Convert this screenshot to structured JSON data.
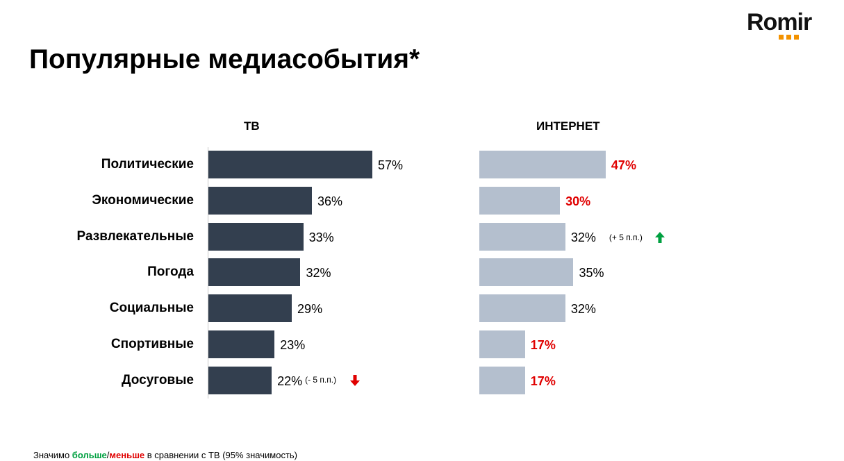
{
  "logo": {
    "text": "Romir",
    "dot_color": "#f39200"
  },
  "title": "Популярные медиасобытия*",
  "colors": {
    "tv_bar": "#333f4f",
    "internet_bar": "#b4bfce",
    "higher": "#00a040",
    "lower": "#e00000"
  },
  "chart_data": [
    {
      "type": "bar",
      "orientation": "horizontal",
      "title": "ТВ",
      "categories": [
        "Политические",
        "Экономические",
        "Развлекательные",
        "Погода",
        "Социальные",
        "Спортивные",
        "Досуговые"
      ],
      "values": [
        57,
        36,
        33,
        32,
        29,
        23,
        22
      ],
      "value_labels": [
        "57%",
        "36%",
        "33%",
        "32%",
        "29%",
        "23%",
        "22%"
      ],
      "annotations": [
        {
          "category": "Досуговые",
          "text": "(- 5 п.п.)",
          "arrow": "down",
          "color": "#e00000"
        }
      ],
      "unit": "%"
    },
    {
      "type": "bar",
      "orientation": "horizontal",
      "title": "ИНТЕРНЕТ",
      "categories": [
        "Политические",
        "Экономические",
        "Развлекательные",
        "Погода",
        "Социальные",
        "Спортивные",
        "Досуговые"
      ],
      "values": [
        47,
        30,
        32,
        35,
        32,
        17,
        17
      ],
      "value_labels": [
        "47%",
        "30%",
        "32%",
        "35%",
        "32%",
        "17%",
        "17%"
      ],
      "significance": [
        "lower",
        "lower",
        "none",
        "none",
        "none",
        "lower",
        "lower"
      ],
      "annotations": [
        {
          "category": "Развлекательные",
          "text": "(+ 5 п.п.)",
          "arrow": "up",
          "color": "#00a040"
        }
      ],
      "unit": "%"
    }
  ],
  "footnote": {
    "prefix": "Значимо ",
    "higher": "больше",
    "slash": "/",
    "lower": "меньше",
    "suffix": " в сравнении с ТВ (95% значимость)"
  }
}
